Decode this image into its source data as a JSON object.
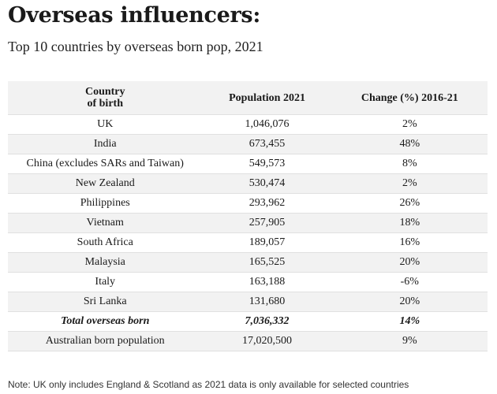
{
  "title": "Overseas influencers:",
  "subtitle": "Top 10 countries by overseas born pop, 2021",
  "note": "Note: UK only includes England & Scotland as 2021 data is only available for selected countries",
  "chart_data": {
    "type": "table",
    "columns": {
      "country_line1": "Country",
      "country_line2": "of birth",
      "population": "Population 2021",
      "change": "Change (%) 2016-21"
    },
    "rows": [
      {
        "country": "UK",
        "population": "1,046,076",
        "change": "2%"
      },
      {
        "country": "India",
        "population": "673,455",
        "change": "48%"
      },
      {
        "country": "China (excludes SARs and Taiwan)",
        "population": "549,573",
        "change": "8%"
      },
      {
        "country": "New Zealand",
        "population": "530,474",
        "change": "2%"
      },
      {
        "country": "Philippines",
        "population": "293,962",
        "change": "26%"
      },
      {
        "country": "Vietnam",
        "population": "257,905",
        "change": "18%"
      },
      {
        "country": "South Africa",
        "population": "189,057",
        "change": "16%"
      },
      {
        "country": "Malaysia",
        "population": "165,525",
        "change": "20%"
      },
      {
        "country": "Italy",
        "population": "163,188",
        "change": "-6%"
      },
      {
        "country": "Sri Lanka",
        "population": "131,680",
        "change": "20%"
      },
      {
        "country": "Total overseas born",
        "population": "7,036,332",
        "change": "14%"
      },
      {
        "country": "Australian born population",
        "population": "17,020,500",
        "change": "9%"
      }
    ],
    "total_row_index": 10
  }
}
